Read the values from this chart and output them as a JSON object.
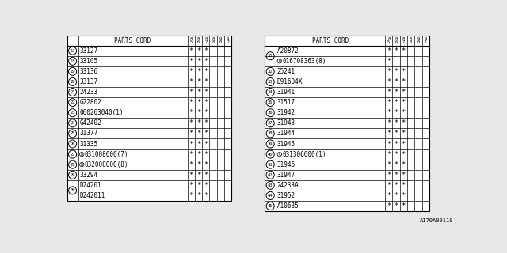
{
  "bg_color": "#e8e8e8",
  "table_bg": "#ffffff",
  "footnote": "A170A00110",
  "col_headers": [
    "8\n5",
    "8\n6",
    "8\n7",
    "8\n8",
    "9\n0",
    "9\n1"
  ],
  "left_table": {
    "rows": [
      {
        "num": "17",
        "part": "33127",
        "stars": [
          1,
          1,
          1,
          0,
          0,
          0
        ],
        "prefix": ""
      },
      {
        "num": "18",
        "part": "33105",
        "stars": [
          1,
          1,
          1,
          0,
          0,
          0
        ],
        "prefix": ""
      },
      {
        "num": "19",
        "part": "33136",
        "stars": [
          1,
          1,
          1,
          0,
          0,
          0
        ],
        "prefix": ""
      },
      {
        "num": "20",
        "part": "33137",
        "stars": [
          1,
          1,
          1,
          0,
          0,
          0
        ],
        "prefix": ""
      },
      {
        "num": "21",
        "part": "24233",
        "stars": [
          1,
          1,
          1,
          0,
          0,
          0
        ],
        "prefix": ""
      },
      {
        "num": "22",
        "part": "G22802",
        "stars": [
          1,
          1,
          1,
          0,
          0,
          0
        ],
        "prefix": ""
      },
      {
        "num": "23",
        "part": "060263040(1)",
        "stars": [
          1,
          1,
          1,
          0,
          0,
          0
        ],
        "prefix": ""
      },
      {
        "num": "24",
        "part": "G42402",
        "stars": [
          1,
          1,
          1,
          0,
          0,
          0
        ],
        "prefix": ""
      },
      {
        "num": "25",
        "part": "31377",
        "stars": [
          1,
          1,
          1,
          0,
          0,
          0
        ],
        "prefix": ""
      },
      {
        "num": "26",
        "part": "31335",
        "stars": [
          1,
          1,
          1,
          0,
          0,
          0
        ],
        "prefix": ""
      },
      {
        "num": "27",
        "part": "031008000(7)",
        "stars": [
          1,
          1,
          1,
          0,
          0,
          0
        ],
        "prefix": "W"
      },
      {
        "num": "28",
        "part": "032008000(8)",
        "stars": [
          1,
          1,
          1,
          0,
          0,
          0
        ],
        "prefix": "W"
      },
      {
        "num": "29",
        "part": "33294",
        "stars": [
          1,
          1,
          1,
          0,
          0,
          0
        ],
        "prefix": ""
      },
      {
        "num": "30",
        "part": "D24201",
        "stars": [
          1,
          1,
          1,
          0,
          0,
          0
        ],
        "prefix": "",
        "shared_first": true
      },
      {
        "num": "30",
        "part": "D242011",
        "stars": [
          1,
          1,
          1,
          0,
          0,
          0
        ],
        "prefix": "",
        "shared_second": true
      }
    ]
  },
  "right_table": {
    "rows": [
      {
        "num": "31",
        "part": "A20872",
        "stars": [
          1,
          1,
          1,
          0,
          0,
          0
        ],
        "prefix": "",
        "shared_first": true
      },
      {
        "num": "31",
        "part": "016708363(8)",
        "stars": [
          1,
          0,
          0,
          0,
          0,
          0
        ],
        "prefix": "B",
        "shared_second": true
      },
      {
        "num": "32",
        "part": "25241",
        "stars": [
          1,
          1,
          1,
          0,
          0,
          0
        ],
        "prefix": ""
      },
      {
        "num": "33",
        "part": "D91604X",
        "stars": [
          1,
          1,
          1,
          0,
          0,
          0
        ],
        "prefix": ""
      },
      {
        "num": "34",
        "part": "31941",
        "stars": [
          1,
          1,
          1,
          0,
          0,
          0
        ],
        "prefix": ""
      },
      {
        "num": "35",
        "part": "31517",
        "stars": [
          1,
          1,
          1,
          0,
          0,
          0
        ],
        "prefix": ""
      },
      {
        "num": "36",
        "part": "31942",
        "stars": [
          1,
          1,
          1,
          0,
          0,
          0
        ],
        "prefix": ""
      },
      {
        "num": "37",
        "part": "31943",
        "stars": [
          1,
          1,
          1,
          0,
          0,
          0
        ],
        "prefix": ""
      },
      {
        "num": "38",
        "part": "31944",
        "stars": [
          1,
          1,
          1,
          0,
          0,
          0
        ],
        "prefix": ""
      },
      {
        "num": "39",
        "part": "31945",
        "stars": [
          1,
          1,
          1,
          0,
          0,
          0
        ],
        "prefix": ""
      },
      {
        "num": "40",
        "part": "031306000(1)",
        "stars": [
          1,
          1,
          1,
          0,
          0,
          0
        ],
        "prefix": "C"
      },
      {
        "num": "41",
        "part": "31946",
        "stars": [
          1,
          1,
          1,
          0,
          0,
          0
        ],
        "prefix": ""
      },
      {
        "num": "42",
        "part": "31947",
        "stars": [
          1,
          1,
          1,
          0,
          0,
          0
        ],
        "prefix": ""
      },
      {
        "num": "43",
        "part": "24233A",
        "stars": [
          1,
          1,
          1,
          0,
          0,
          0
        ],
        "prefix": ""
      },
      {
        "num": "44",
        "part": "31952",
        "stars": [
          1,
          1,
          1,
          0,
          0,
          0
        ],
        "prefix": ""
      },
      {
        "num": "45",
        "part": "A10635",
        "stars": [
          1,
          1,
          1,
          0,
          0,
          0
        ],
        "prefix": ""
      }
    ]
  }
}
